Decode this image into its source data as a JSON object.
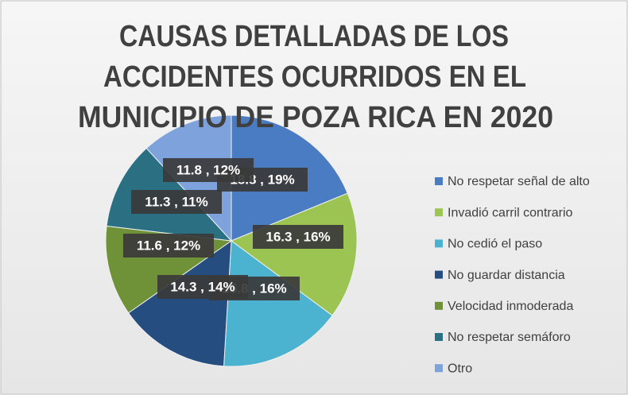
{
  "chart_data": {
    "type": "pie",
    "title": [
      "CAUSAS DETALLADAS DE LOS",
      "ACCIDENTES OCURRIDOS EN EL",
      "MUNICIPIO DE POZA RICA EN 2020"
    ],
    "categories": [
      "No respetar señal de alto",
      "Invadió carril contrario",
      "No cedió el paso",
      "No guardar distancia",
      "Velocidad inmoderada",
      "No respetar semáforo",
      "Otro"
    ],
    "values": [
      18.8,
      16.3,
      15.8,
      14.3,
      11.6,
      11.3,
      11.8
    ],
    "value_labels": [
      "18.8 , 19%",
      "16.3 , 16%",
      "15.8 , 16%",
      "14.3 , 14%",
      "11.6 , 12%",
      "11.3 , 11%",
      "11.8 , 12%"
    ],
    "colors": [
      "#4a7cc4",
      "#9cc452",
      "#4bb3d0",
      "#264d80",
      "#6f9137",
      "#2a6f82",
      "#7ea2dc"
    ],
    "legend": "right"
  }
}
